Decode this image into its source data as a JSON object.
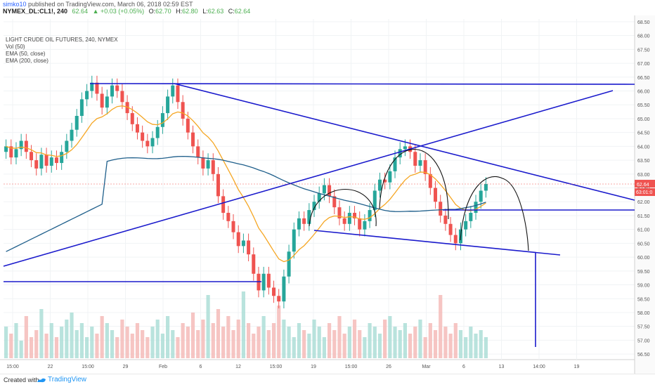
{
  "header": {
    "user": "simko10",
    "published": "published on TradingView.com, March 06, 2018 02:59 EST",
    "symbol": "NYMEX_DL:CL1!, 240",
    "open_label": "O:",
    "open": "62.70",
    "high_label": "H:",
    "high": "62.80",
    "low_label": "L:",
    "low": "62.63",
    "close_label": "C:",
    "close": "62.64",
    "last": "62.64",
    "change": "+0.03 (+0.05%)"
  },
  "legend": {
    "title": "LIGHT CRUDE OIL FUTURES, 240, NYMEX",
    "vol": "Vol (50)",
    "ema50": "EMA (50, close)",
    "ema200": "EMA (200, close)"
  },
  "footer": {
    "created_with": "Created with",
    "brand": "TradingView"
  },
  "colors": {
    "up": "#26a69a",
    "down": "#ef5350",
    "ema50": "#f5a623",
    "ema200": "#1f5f8b",
    "trendline": "#1a1acc",
    "arc": "#111111",
    "price_tag": "#ef5350"
  },
  "chart_data": {
    "type": "candlestick",
    "ylim": [
      56.3,
      68.6
    ],
    "y_ticks": [
      "68.50",
      "68.00",
      "67.50",
      "67.00",
      "66.50",
      "66.00",
      "65.50",
      "65.00",
      "64.50",
      "64.00",
      "63.50",
      "63.00",
      "62.50",
      "62.00",
      "61.50",
      "61.00",
      "60.50",
      "60.00",
      "59.50",
      "59.00",
      "58.50",
      "58.00",
      "57.50",
      "57.00",
      "56.50"
    ],
    "x_ticks": [
      "15:00",
      "22",
      "15:00",
      "29",
      "Feb",
      "6",
      "12",
      "15:00",
      "19",
      "15:00",
      "26",
      "Mar",
      "6",
      "13",
      "14:00",
      "19"
    ],
    "price_labels": [
      "62.64",
      "63:01:0"
    ],
    "close_path": [
      64.0,
      63.6,
      63.9,
      64.2,
      63.8,
      63.5,
      63.2,
      63.7,
      63.3,
      63.6,
      63.4,
      63.8,
      64.2,
      64.6,
      65.1,
      65.7,
      66.0,
      66.3,
      65.9,
      65.4,
      65.8,
      66.2,
      66.0,
      65.6,
      65.2,
      64.8,
      64.5,
      64.2,
      64.0,
      64.3,
      64.7,
      65.2,
      65.8,
      66.2,
      65.6,
      65.0,
      64.5,
      64.0,
      63.6,
      63.2,
      63.5,
      63.0,
      62.2,
      61.6,
      61.3,
      60.9,
      60.4,
      60.6,
      60.1,
      59.4,
      58.8,
      59.4,
      58.9,
      58.6,
      58.4,
      59.3,
      60.2,
      61.0,
      61.4,
      61.2,
      61.7,
      62.0,
      62.3,
      62.6,
      62.2,
      61.8,
      61.4,
      61.2,
      61.6,
      61.4,
      61.0,
      61.3,
      61.7,
      62.4,
      62.8,
      62.7,
      63.1,
      63.6,
      63.9,
      64.0,
      63.8,
      63.3,
      63.5,
      63.0,
      62.5,
      62.0,
      61.5,
      61.2,
      60.8,
      60.5,
      61.0,
      61.3,
      61.6,
      62.0,
      62.4,
      62.64
    ],
    "volume_path": [
      0.45,
      0.35,
      0.5,
      0.25,
      0.6,
      0.3,
      0.4,
      0.7,
      0.35,
      0.5,
      0.3,
      0.45,
      0.55,
      0.65,
      0.4,
      0.5,
      0.3,
      0.45,
      0.35,
      0.6,
      0.5,
      0.4,
      0.3,
      0.55,
      0.45,
      0.35,
      0.5,
      0.4,
      0.3,
      0.45,
      0.55,
      0.35,
      0.6,
      0.4,
      0.3,
      0.5,
      0.45,
      0.65,
      0.4,
      0.55,
      0.9,
      0.5,
      0.7,
      0.45,
      0.6,
      0.4,
      0.55,
      0.95,
      0.5,
      0.35,
      0.45,
      0.6,
      0.4,
      0.5,
      0.75,
      0.55,
      0.45,
      0.3,
      0.5,
      0.4,
      0.35,
      0.55,
      0.45,
      0.3,
      0.5,
      0.4,
      0.6,
      0.35,
      0.45,
      0.55,
      0.4,
      0.3,
      0.5,
      0.45,
      0.35,
      0.55,
      0.6,
      0.45,
      0.4,
      0.5,
      0.35,
      0.45,
      0.55,
      0.3,
      0.5,
      0.4,
      0.9,
      0.45,
      0.35,
      0.5,
      0.4,
      0.3,
      0.45,
      0.35,
      0.4,
      0.3
    ]
  }
}
